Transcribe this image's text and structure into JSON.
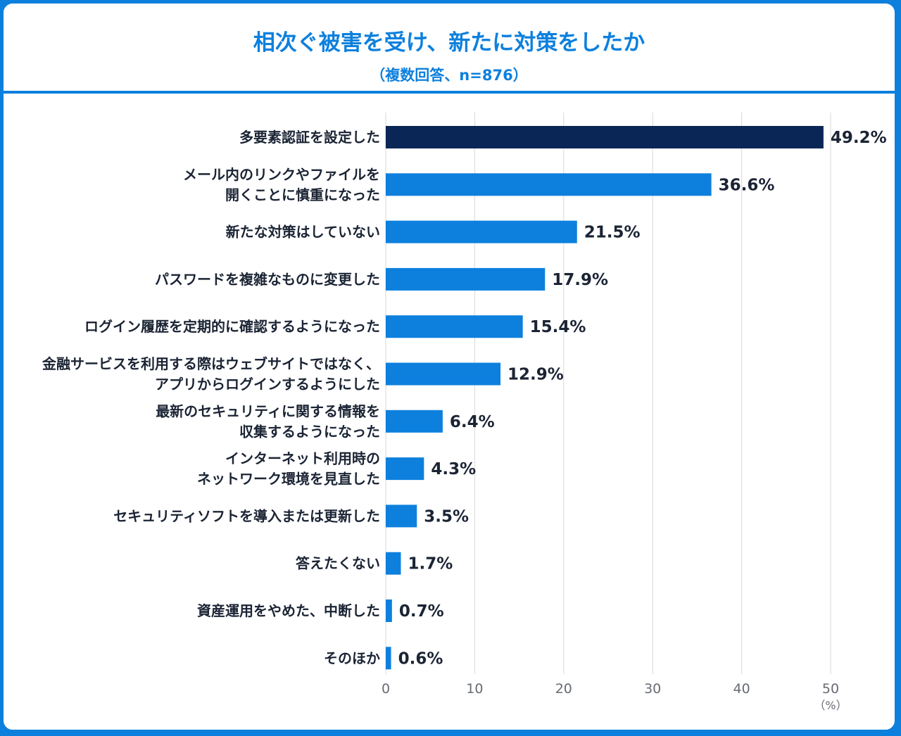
{
  "chart_data": {
    "type": "bar",
    "orientation": "horizontal",
    "title": "相次ぐ被害を受け、新たに対策をしたか",
    "subtitle": "（複数回答、n=876）",
    "categories": [
      [
        "多要素認証を設定した"
      ],
      [
        "メール内のリンクやファイルを",
        "開くことに慎重になった"
      ],
      [
        "新たな対策はしていない"
      ],
      [
        "パスワードを複雑なものに変更した"
      ],
      [
        "ログイン履歴を定期的に確認するようになった"
      ],
      [
        "金融サービスを利用する際はウェブサイトではなく、",
        "アプリからログインするようにした"
      ],
      [
        "最新のセキュリティに関する情報を",
        "収集するようになった"
      ],
      [
        "インターネット利用時の",
        "ネットワーク環境を見直した"
      ],
      [
        "セキュリティソフトを導入または更新した"
      ],
      [
        "答えたくない"
      ],
      [
        "資産運用をやめた、中断した"
      ],
      [
        "そのほか"
      ]
    ],
    "values": [
      49.2,
      36.6,
      21.5,
      17.9,
      15.4,
      12.9,
      6.4,
      4.3,
      3.5,
      1.7,
      0.7,
      0.6
    ],
    "value_labels": [
      "49.2%",
      "36.6%",
      "21.5%",
      "17.9%",
      "15.4%",
      "12.9%",
      "6.4%",
      "4.3%",
      "3.5%",
      "1.7%",
      "0.7%",
      "0.6%"
    ],
    "xlim": [
      0,
      50
    ],
    "xticks": [
      "0",
      "10",
      "20",
      "30",
      "40",
      "50"
    ],
    "xunit": "（%）",
    "grid": true,
    "colors": {
      "highlight": "#0a2656",
      "bar": "#0d80dd",
      "frame": "#0d80dd"
    }
  }
}
